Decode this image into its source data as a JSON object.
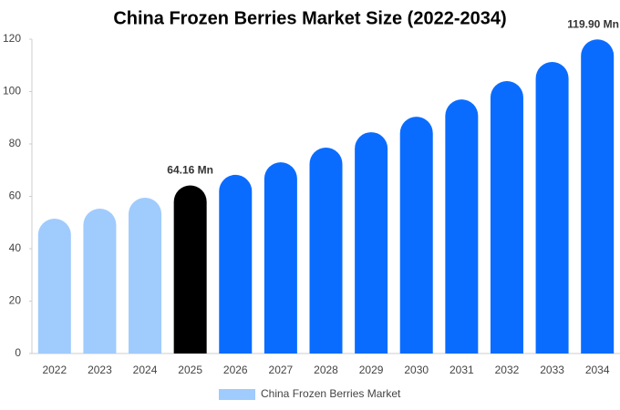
{
  "chart_data": {
    "type": "bar",
    "title": "China Frozen Berries Market Size (2022-2034)",
    "categories": [
      "2022",
      "2023",
      "2024",
      "2025",
      "2026",
      "2027",
      "2028",
      "2029",
      "2030",
      "2031",
      "2032",
      "2033",
      "2034"
    ],
    "series": [
      {
        "name": "China Frozen Berries Market",
        "color": "#a0cbfd",
        "values": [
          51.5,
          55.3,
          59.5,
          64.16,
          68.2,
          73,
          78.6,
          84.5,
          90.4,
          97,
          104,
          111.3,
          119.9
        ],
        "value_labels": [
          null,
          null,
          null,
          "64.16 Mn",
          null,
          null,
          null,
          null,
          null,
          null,
          null,
          null,
          "119.90 Mn"
        ],
        "bar_colors": [
          "#a0cbfd",
          "#a0cbfd",
          "#a0cbfd",
          "#000000",
          "#0a6cff",
          "#0a6cff",
          "#0a6cff",
          "#0a6cff",
          "#0a6cff",
          "#0a6cff",
          "#0a6cff",
          "#0a6cff",
          "#0a6cff"
        ]
      }
    ],
    "ylim": [
      0,
      120
    ],
    "yticks": [
      0,
      20,
      40,
      60,
      80,
      100,
      120
    ],
    "grid": false
  }
}
